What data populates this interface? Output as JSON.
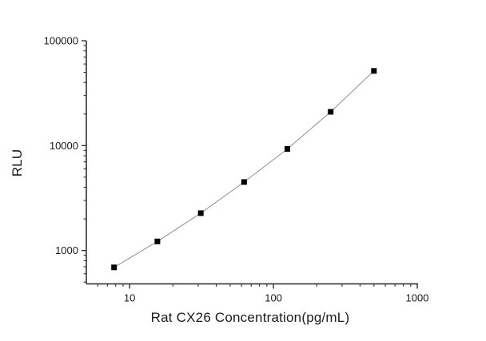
{
  "figure": {
    "background": "#ffffff"
  },
  "chart_data": {
    "type": "line",
    "subtype": "scatter-line",
    "title": "",
    "xlabel": "Rat CX26 Concentration(pg/mL)",
    "ylabel": "RLU",
    "x_scale": "log",
    "y_scale": "log",
    "x": [
      7.8,
      15.6,
      31.25,
      62.5,
      125,
      250,
      500
    ],
    "y": [
      690,
      1220,
      2270,
      4500,
      9300,
      21000,
      51500
    ],
    "xlim": [
      5,
      1000
    ],
    "ylim": [
      480,
      100000
    ],
    "x_ticks": [
      10,
      100,
      1000
    ],
    "y_ticks": [
      1000,
      10000,
      100000
    ],
    "x_minor_ticks": [
      6,
      7,
      8,
      9,
      20,
      30,
      40,
      50,
      60,
      70,
      80,
      90,
      200,
      300,
      400,
      500,
      600,
      700,
      800,
      900
    ],
    "y_minor_ticks": [
      500,
      600,
      700,
      800,
      900,
      2000,
      3000,
      4000,
      5000,
      6000,
      7000,
      8000,
      9000,
      20000,
      30000,
      40000,
      50000,
      60000,
      70000,
      80000,
      90000
    ],
    "grid": false,
    "legend_position": "none",
    "marker": {
      "shape": "square",
      "color": "#000000",
      "size": 7
    },
    "line": {
      "color": "#8f8f8f",
      "width": 1
    },
    "axis_color": "#262626",
    "text_color": "#1a1a1a"
  }
}
